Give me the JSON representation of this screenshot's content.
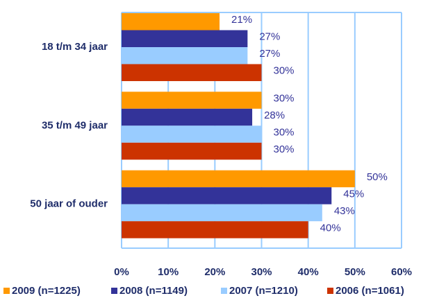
{
  "chart_data": {
    "type": "hbar",
    "categories": [
      "18 t/m 34 jaar",
      "35 t/m 49 jaar",
      "50 jaar of ouder"
    ],
    "series": [
      {
        "name": "2009 (n=1225)",
        "color": "#ff9900",
        "values": [
          21,
          30,
          50
        ],
        "value_labels": [
          "21%",
          "30%",
          "50%"
        ]
      },
      {
        "name": "2008 (n=1149)",
        "color": "#333399",
        "values": [
          27,
          28,
          45
        ],
        "value_labels": [
          "27%",
          "28%",
          "45%"
        ]
      },
      {
        "name": "2007 (n=1210)",
        "color": "#99ccff",
        "values": [
          27,
          30,
          43
        ],
        "value_labels": [
          "27%",
          "30%",
          "43%"
        ]
      },
      {
        "name": "2006 (n=1061)",
        "color": "#cc3300",
        "values": [
          30,
          30,
          40
        ],
        "value_labels": [
          "30%",
          "30%",
          "40%"
        ]
      }
    ],
    "xlim": [
      0,
      60
    ],
    "xticks": [
      {
        "value": 0,
        "label": "0%"
      },
      {
        "value": 10,
        "label": "10%"
      },
      {
        "value": 20,
        "label": "20%"
      },
      {
        "value": 30,
        "label": "30%"
      },
      {
        "value": 40,
        "label": "40%"
      },
      {
        "value": 50,
        "label": "50%"
      },
      {
        "value": 60,
        "label": "60%"
      }
    ],
    "grid": true,
    "legend": "bottom"
  }
}
